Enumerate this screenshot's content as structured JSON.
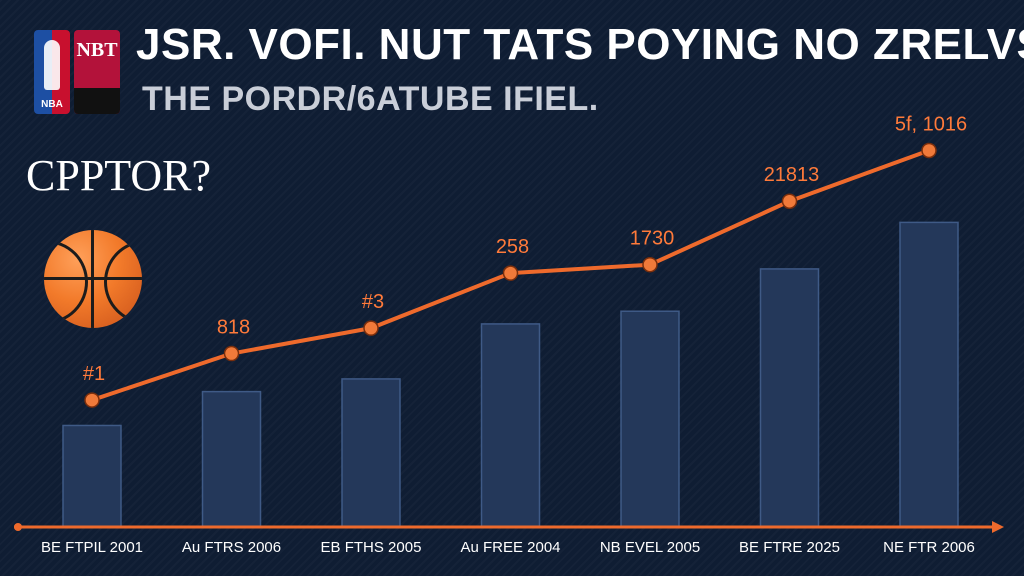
{
  "header": {
    "title": "JSR. VOFI. NUT TATS POYING NO ZRELVS",
    "subtitle": "THE PORDR/6ATUBE IFIEL.",
    "side_text": "CPPTOR?",
    "logo_text": "NBA",
    "logo_secondary_text": "NBT"
  },
  "colors": {
    "background": "#0f1d33",
    "bars": "#24385a",
    "line": "#ee6a2c",
    "labels": "#ff7a3a",
    "axis": "#ee6a2c"
  },
  "chart_data": {
    "type": "bar",
    "categories": [
      "BE FTPIL 2001",
      "Au FTRS 2006",
      "EB FTHS 2005",
      "Au FREE 2004",
      "NB EVEL 2005",
      "BE FTRE 2025",
      "NE FTR 2006"
    ],
    "series": [
      {
        "type": "bar",
        "values": [
          120,
          160,
          175,
          240,
          255,
          305,
          360
        ]
      },
      {
        "type": "line",
        "values": [
          150,
          205,
          235,
          300,
          310,
          385,
          445
        ]
      }
    ],
    "data_labels": [
      "#1",
      "818",
      "#3",
      "258",
      "1730",
      "21813",
      "5f, 1016"
    ],
    "ylim": [
      0,
      520
    ],
    "grid": false,
    "legend": "none"
  }
}
